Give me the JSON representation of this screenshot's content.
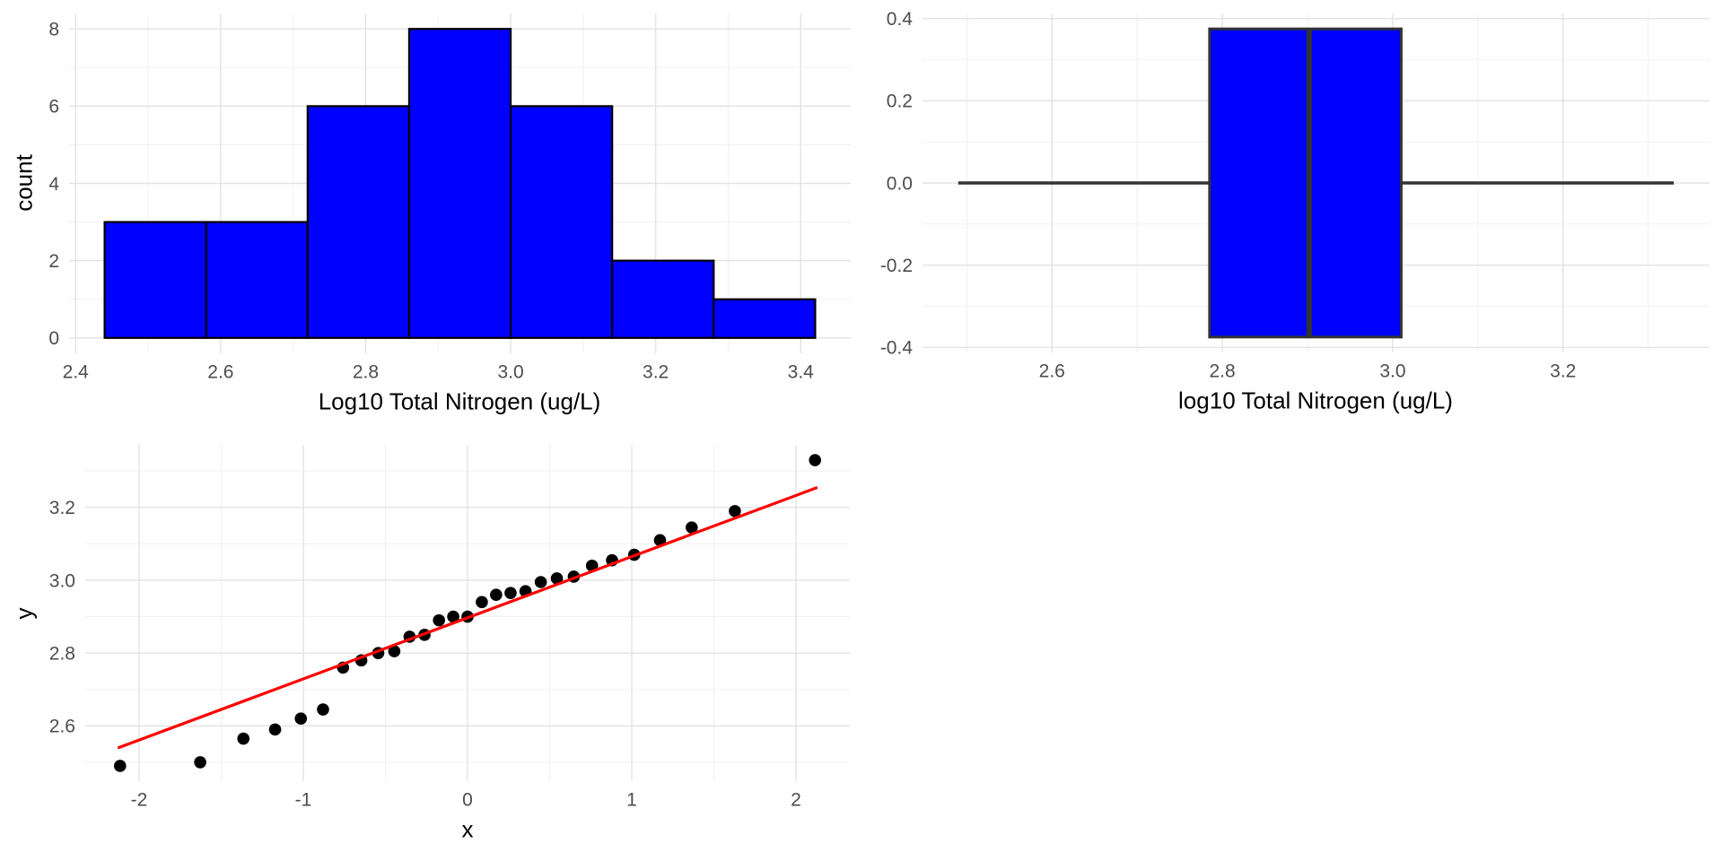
{
  "figure": {
    "background": "#ffffff",
    "layout": "2x2 grid, bottom-right cell empty"
  },
  "style": {
    "grid_major": "#e3e3e3",
    "grid_minor": "#efefef",
    "tick_label_color": "#4d4d4d",
    "axis_title_color": "#000000"
  },
  "chart_data": [
    {
      "type": "bar",
      "subtype": "histogram",
      "position": "top-left",
      "title": "",
      "xlabel": "Log10 Total Nitrogen (ug/L)",
      "ylabel": "count",
      "bins": {
        "start": 2.44,
        "width": 0.14,
        "counts": [
          3,
          3,
          6,
          8,
          6,
          2,
          1
        ]
      },
      "xlim": [
        2.391,
        3.469
      ],
      "ylim": [
        -0.4,
        8.4
      ],
      "x_ticks": {
        "major": [
          2.4,
          2.6,
          2.8,
          3.0,
          3.2,
          3.4
        ],
        "labels": [
          "2.4",
          "2.6",
          "2.8",
          "3.0",
          "3.2",
          "3.4"
        ],
        "minor": [
          2.5,
          2.7,
          2.9,
          3.1,
          3.3
        ]
      },
      "y_ticks": {
        "major": [
          0,
          2,
          4,
          6,
          8
        ],
        "labels": [
          "0",
          "2",
          "4",
          "6",
          "8"
        ],
        "minor": [
          1,
          3,
          5,
          7
        ]
      },
      "bar_fill": "#0000ff",
      "bar_stroke": "#000000",
      "grid": true,
      "legend": "none"
    },
    {
      "type": "boxplot",
      "subtype": "horizontal-boxplot",
      "position": "top-right",
      "title": "",
      "xlabel": "log10 Total Nitrogen (ug/L)",
      "ylabel": "",
      "stats": {
        "min": 2.49,
        "q1": 2.785,
        "median": 2.902,
        "q3": 3.01,
        "max": 3.33
      },
      "box_center_y": 0,
      "box_half_height": 0.375,
      "xlim": [
        2.448,
        3.372
      ],
      "ylim": [
        -0.4125,
        0.4125
      ],
      "x_ticks": {
        "major": [
          2.6,
          2.8,
          3.0,
          3.2
        ],
        "labels": [
          "2.6",
          "2.8",
          "3.0",
          "3.2"
        ],
        "minor": [
          2.5,
          2.7,
          2.9,
          3.1,
          3.3
        ]
      },
      "y_ticks": {
        "major": [
          -0.4,
          -0.2,
          0.0,
          0.2,
          0.4
        ],
        "labels": [
          "-0.4",
          "-0.2",
          "0.0",
          "0.2",
          "0.4"
        ],
        "minor": [
          -0.3,
          -0.1,
          0.1,
          0.3
        ]
      },
      "box_fill": "#0000ff",
      "box_stroke": "#333333",
      "grid": true,
      "legend": "none"
    },
    {
      "type": "scatter",
      "subtype": "qq-plot",
      "position": "bottom-left",
      "title": "",
      "xlabel": "x",
      "ylabel": "y",
      "points": [
        [
          -2.116,
          2.49
        ],
        [
          -1.628,
          2.5
        ],
        [
          -1.365,
          2.565
        ],
        [
          -1.172,
          2.59
        ],
        [
          -1.015,
          2.62
        ],
        [
          -0.88,
          2.645
        ],
        [
          -0.758,
          2.76
        ],
        [
          -0.647,
          2.78
        ],
        [
          -0.544,
          2.8
        ],
        [
          -0.446,
          2.805
        ],
        [
          -0.353,
          2.845
        ],
        [
          -0.262,
          2.85
        ],
        [
          -0.174,
          2.89
        ],
        [
          -0.087,
          2.9
        ],
        [
          0.0,
          2.9
        ],
        [
          0.087,
          2.94
        ],
        [
          0.174,
          2.96
        ],
        [
          0.262,
          2.965
        ],
        [
          0.353,
          2.97
        ],
        [
          0.446,
          2.995
        ],
        [
          0.544,
          3.005
        ],
        [
          0.647,
          3.01
        ],
        [
          0.758,
          3.04
        ],
        [
          0.88,
          3.055
        ],
        [
          1.015,
          3.07
        ],
        [
          1.172,
          3.11
        ],
        [
          1.365,
          3.145
        ],
        [
          1.628,
          3.19
        ],
        [
          2.116,
          3.33
        ]
      ],
      "fit_line": {
        "slope": 0.168,
        "intercept": 2.897,
        "x_range": [
          -2.13,
          2.13
        ],
        "color": "#ff0000"
      },
      "point_color": "#000000",
      "xlim": [
        -2.328,
        2.328
      ],
      "ylim": [
        2.448,
        3.372
      ],
      "x_ticks": {
        "major": [
          -2,
          -1,
          0,
          1,
          2
        ],
        "labels": [
          "-2",
          "-1",
          "0",
          "1",
          "2"
        ],
        "minor": [
          -1.5,
          -0.5,
          0.5,
          1.5
        ]
      },
      "y_ticks": {
        "major": [
          2.6,
          2.8,
          3.0,
          3.2
        ],
        "labels": [
          "2.6",
          "2.8",
          "3.0",
          "3.2"
        ],
        "minor": [
          2.5,
          2.7,
          2.9,
          3.1,
          3.3
        ]
      },
      "grid": true,
      "legend": "none"
    }
  ]
}
